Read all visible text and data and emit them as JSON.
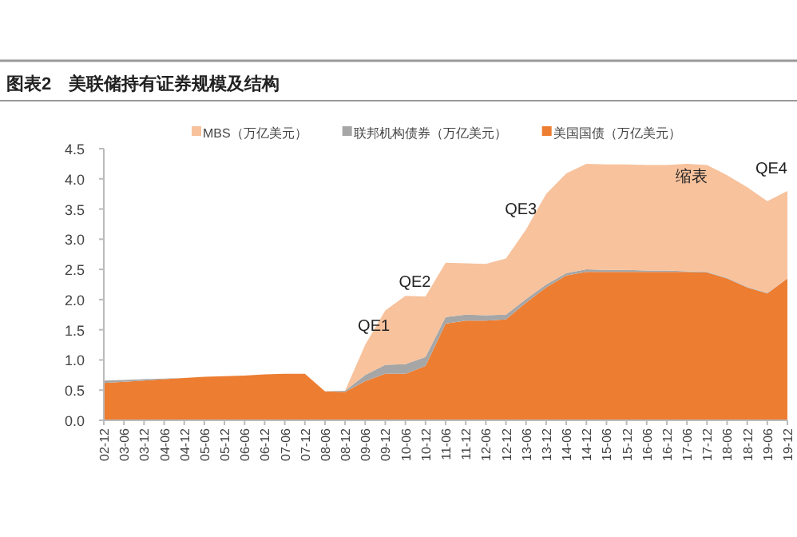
{
  "chart_data": {
    "type": "area",
    "title": "图表2　美联储持有证券规模及结构",
    "stacked": true,
    "legend": "top",
    "categories": [
      "02-12",
      "03-06",
      "03-12",
      "04-06",
      "04-12",
      "05-06",
      "05-12",
      "06-06",
      "06-12",
      "07-06",
      "07-12",
      "08-06",
      "08-12",
      "09-06",
      "09-12",
      "10-06",
      "10-12",
      "11-06",
      "11-12",
      "12-06",
      "12-12",
      "13-06",
      "13-12",
      "14-06",
      "14-12",
      "15-06",
      "15-12",
      "16-06",
      "16-12",
      "17-06",
      "17-12",
      "18-06",
      "18-12",
      "19-06",
      "19-12"
    ],
    "series": [
      {
        "name": "美国国债（万亿美元）",
        "color": "#ed7d31",
        "values": [
          0.62,
          0.64,
          0.66,
          0.68,
          0.7,
          0.72,
          0.73,
          0.74,
          0.76,
          0.77,
          0.77,
          0.48,
          0.47,
          0.65,
          0.77,
          0.77,
          0.9,
          1.6,
          1.65,
          1.65,
          1.67,
          1.95,
          2.2,
          2.4,
          2.46,
          2.46,
          2.46,
          2.46,
          2.46,
          2.46,
          2.45,
          2.35,
          2.2,
          2.1,
          2.35
        ]
      },
      {
        "name": "联邦机构债券（万亿美元）",
        "color": "#a6a6a6",
        "values": [
          0.04,
          0.03,
          0.02,
          0.01,
          0,
          0,
          0,
          0,
          0,
          0,
          0,
          0,
          0.02,
          0.1,
          0.15,
          0.16,
          0.15,
          0.11,
          0.1,
          0.09,
          0.08,
          0.06,
          0.05,
          0.04,
          0.04,
          0.03,
          0.03,
          0.02,
          0.02,
          0.01,
          0.01,
          0.01,
          0.01,
          0.01,
          0
        ]
      },
      {
        "name": "MBS（万亿美元）",
        "color": "#f7c29c",
        "values": [
          0,
          0,
          0,
          0,
          0,
          0,
          0,
          0,
          0,
          0,
          0,
          0,
          0,
          0.5,
          0.9,
          1.13,
          1.0,
          0.9,
          0.85,
          0.85,
          0.93,
          1.15,
          1.5,
          1.65,
          1.75,
          1.75,
          1.75,
          1.75,
          1.75,
          1.78,
          1.77,
          1.7,
          1.65,
          1.52,
          1.45
        ]
      }
    ],
    "ylim": [
      0,
      4.5
    ],
    "yticks": [
      {
        "value": 0,
        "label": "0.0"
      },
      {
        "value": 0.5,
        "label": "0.5"
      },
      {
        "value": 1,
        "label": "1.0"
      },
      {
        "value": 1.5,
        "label": "1.5"
      },
      {
        "value": 2,
        "label": "2.0"
      },
      {
        "value": 2.5,
        "label": "2.5"
      },
      {
        "value": 3,
        "label": "3.0"
      },
      {
        "value": 3.5,
        "label": "3.5"
      },
      {
        "value": 4,
        "label": "4.0"
      },
      {
        "value": 4.5,
        "label": "4.5"
      }
    ],
    "annotations": [
      "QE1",
      "QE2",
      "QE3",
      "缩表",
      "QE4"
    ]
  }
}
